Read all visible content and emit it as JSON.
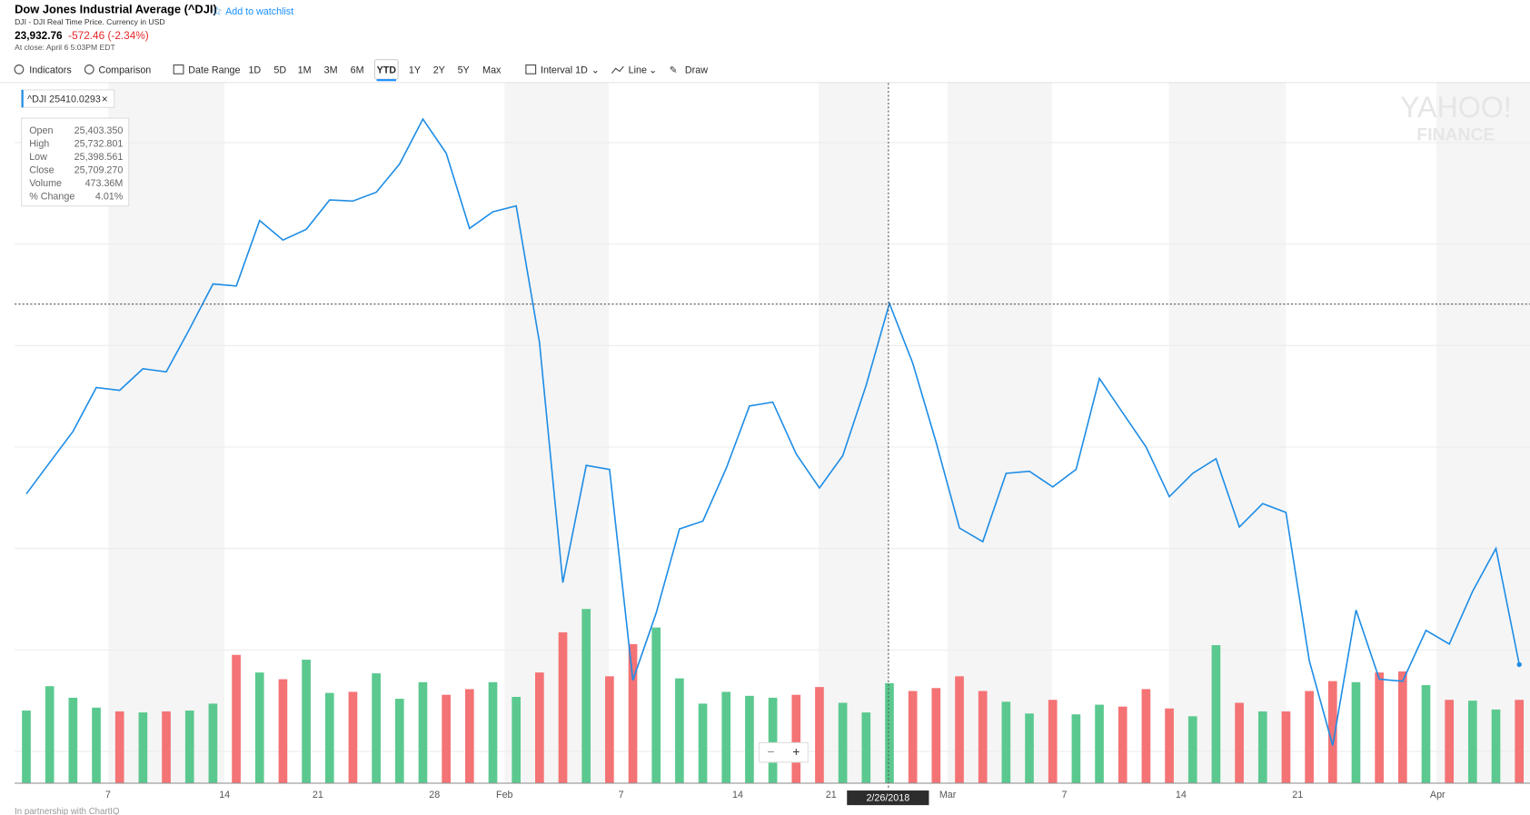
{
  "header": {
    "title": "Dow Jones Industrial Average (^DJI)",
    "watchlist": "Add to watchlist",
    "subtitle": "DJI - DJI Real Time Price. Currency in USD",
    "price": "23,932.76",
    "change": "-572.46 (-2.34%)",
    "close_time": "At close: April 6 5:03PM EDT"
  },
  "toolbar": {
    "indicators": "Indicators",
    "comparison": "Comparison",
    "date_range": "Date Range",
    "ranges": [
      "1D",
      "5D",
      "1M",
      "3M",
      "6M",
      "YTD",
      "1Y",
      "2Y",
      "5Y",
      "Max"
    ],
    "interval": "Interval 1D",
    "chart_type": "Line",
    "draw": "Draw"
  },
  "legend": "^DJI 25410.0293",
  "tooltip": {
    "labels": [
      "Open",
      "High",
      "Low",
      "Close",
      "Volume",
      "% Change"
    ],
    "values": [
      "25,403.350",
      "25,732.801",
      "25,398.561",
      "25,709.270",
      "473.36M",
      "4.01%"
    ]
  },
  "crosshair_date": "2/26/2018",
  "watermark": [
    "YAHOO!",
    "FINANCE"
  ],
  "footer": "In partnership with ChartIQ",
  "chart_data": {
    "type": "line",
    "categories": [
      null,
      null,
      null,
      null,
      "7",
      null,
      null,
      null,
      null,
      "14",
      null,
      null,
      null,
      "21",
      null,
      null,
      null,
      null,
      "28",
      null,
      null,
      "Feb",
      null,
      null,
      null,
      null,
      "7",
      null,
      null,
      null,
      null,
      "14",
      null,
      null,
      null,
      "21",
      null,
      null,
      null,
      null,
      "Mar",
      null,
      null,
      null,
      null,
      "7",
      null,
      null,
      null,
      null,
      "14",
      null,
      null,
      null,
      null,
      "21",
      null,
      null,
      null,
      null,
      null,
      "Apr",
      null,
      null,
      null
    ],
    "series": [
      {
        "name": "^DJI",
        "color": "#1e8de6",
        "values": [
          24773,
          24927,
          25080,
          25296,
          25282,
          25388,
          25373,
          25584,
          25805,
          25795,
          26117,
          26021,
          26074,
          26218,
          26213,
          26256,
          26395,
          26616,
          26448,
          26078,
          26160,
          26189,
          25517,
          24337,
          24913,
          24893,
          23857,
          24188,
          24601,
          24639,
          24898,
          25205,
          25224,
          24970,
          24802,
          24961,
          25306,
          25709,
          25416,
          25028,
          24605,
          24538,
          24874,
          24884,
          24807,
          24893,
          25340,
          25172,
          25004,
          24759,
          24874,
          24946,
          24610,
          24725,
          24682,
          23953,
          23536,
          24202,
          23862,
          23852,
          24102,
          24035,
          24294,
          24505,
          23934
        ]
      }
    ],
    "ylim": [
      23353,
      26793
    ],
    "volume": {
      "values": [
        343,
        459,
        404,
        357,
        339,
        334,
        339,
        343,
        376,
        608,
        524,
        492,
        585,
        427,
        432,
        520,
        399,
        478,
        418,
        445,
        478,
        408,
        524,
        715,
        826,
        506,
        659,
        738,
        496,
        376,
        432,
        413,
        404,
        418,
        455,
        380,
        334,
        473,
        436,
        450,
        506,
        436,
        385,
        329,
        394,
        325,
        371,
        362,
        445,
        353,
        316,
        654,
        380,
        339,
        339,
        436,
        483,
        478,
        524,
        529,
        464,
        394,
        390,
        348,
        394
      ],
      "colors": [
        "#5bc98f",
        "#5bc98f",
        "#5bc98f",
        "#5bc98f",
        "#f47375",
        "#5bc98f",
        "#f47375",
        "#5bc98f",
        "#5bc98f",
        "#f47375",
        "#5bc98f",
        "#f47375",
        "#5bc98f",
        "#5bc98f",
        "#f47375",
        "#5bc98f",
        "#5bc98f",
        "#5bc98f",
        "#f47375",
        "#f47375",
        "#5bc98f",
        "#5bc98f",
        "#f47375",
        "#f47375",
        "#5bc98f",
        "#f47375",
        "#f47375",
        "#5bc98f",
        "#5bc98f",
        "#5bc98f",
        "#5bc98f",
        "#5bc98f",
        "#5bc98f",
        "#f47375",
        "#f47375",
        "#5bc98f",
        "#5bc98f",
        "#5bc98f",
        "#f47375",
        "#f47375",
        "#f47375",
        "#f47375",
        "#5bc98f",
        "#5bc98f",
        "#f47375",
        "#5bc98f",
        "#5bc98f",
        "#f47375",
        "#f47375",
        "#f47375",
        "#5bc98f",
        "#5bc98f",
        "#f47375",
        "#5bc98f",
        "#f47375",
        "#f47375",
        "#f47375",
        "#5bc98f",
        "#f47375",
        "#f47375",
        "#5bc98f",
        "#f47375",
        "#5bc98f",
        "#5bc98f",
        "#f47375"
      ],
      "vlim": [
        0,
        3327
      ]
    }
  }
}
